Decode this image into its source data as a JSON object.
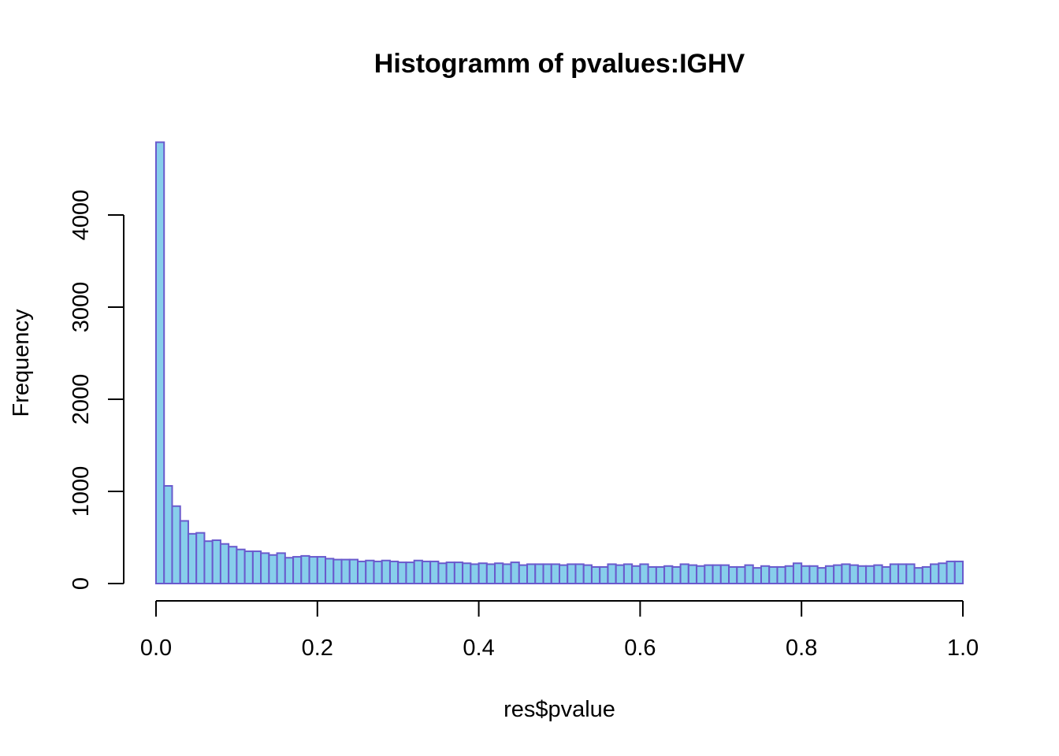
{
  "chart_data": {
    "type": "bar",
    "title": "Histogramm of pvalues:IGHV",
    "xlabel": "res$pvalue",
    "ylabel": "Frequency",
    "xlim": [
      0,
      1
    ],
    "ylim": [
      0,
      4800
    ],
    "bin_width": 0.01,
    "x_ticks": [
      "0.0",
      "0.2",
      "0.4",
      "0.6",
      "0.8",
      "1.0"
    ],
    "y_ticks": [
      "0",
      "1000",
      "2000",
      "3000",
      "4000"
    ],
    "fill_color": "#87CEEB",
    "border_color": "#6A5ACD",
    "values": [
      4790,
      1060,
      840,
      680,
      540,
      550,
      460,
      470,
      430,
      400,
      370,
      350,
      350,
      330,
      310,
      330,
      280,
      290,
      300,
      290,
      290,
      270,
      260,
      260,
      260,
      240,
      250,
      240,
      250,
      240,
      230,
      230,
      250,
      240,
      240,
      220,
      230,
      230,
      220,
      210,
      220,
      210,
      220,
      210,
      230,
      200,
      210,
      210,
      210,
      210,
      200,
      210,
      210,
      200,
      180,
      180,
      210,
      200,
      210,
      190,
      210,
      180,
      180,
      190,
      180,
      210,
      200,
      190,
      200,
      200,
      200,
      180,
      180,
      200,
      170,
      190,
      180,
      180,
      190,
      220,
      190,
      190,
      170,
      190,
      200,
      210,
      200,
      190,
      190,
      200,
      180,
      210,
      210,
      210,
      170,
      180,
      210,
      220,
      240,
      240
    ]
  }
}
